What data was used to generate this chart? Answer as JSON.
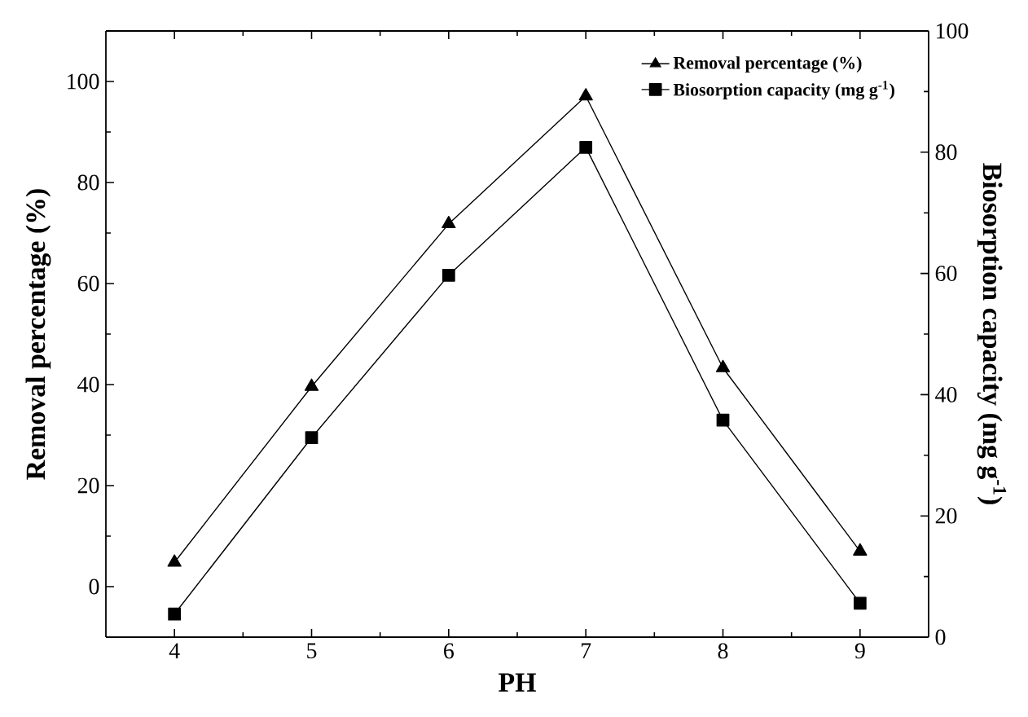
{
  "chart_data": {
    "type": "line",
    "xlabel": "PH",
    "ylabel": "Removal percentage (%)",
    "y2label": "Biosorption capacity (mg g$^{-1}$)",
    "x": [
      4,
      5,
      6,
      7,
      8,
      9
    ],
    "xlim": [
      3.5,
      9.5
    ],
    "xticks": [
      4,
      5,
      6,
      7,
      8,
      9
    ],
    "ylim": [
      -10,
      110
    ],
    "yticks": [
      0,
      20,
      40,
      60,
      80,
      100
    ],
    "y2lim": [
      0,
      100
    ],
    "y2ticks": [
      0,
      20,
      40,
      60,
      80,
      100
    ],
    "legend": "top right",
    "grid": false,
    "series": [
      {
        "name": "Removal percentage (%)",
        "color": "#000000",
        "marker": "triangle",
        "values": [
          4.8,
          39.6,
          71.8,
          97.1,
          43.3,
          7.0
        ]
      },
      {
        "name": "Biosorption capacity (mg g$^{-1}$)",
        "color": "#000000",
        "marker": "square",
        "axis": "y2",
        "values": [
          3.8,
          32.9,
          59.7,
          80.8,
          35.8,
          5.6
        ]
      }
    ]
  }
}
